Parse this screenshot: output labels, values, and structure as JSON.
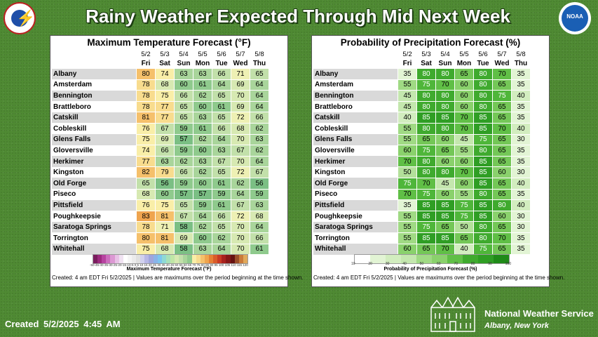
{
  "title": "Rainy Weather Expected Through Mid Next Week",
  "logos": {
    "left": "nws-logo",
    "right": "noaa-logo",
    "right_text": "NOAA"
  },
  "dates": [
    "5/2",
    "5/3",
    "5/4",
    "5/5",
    "5/6",
    "5/7",
    "5/8"
  ],
  "days": [
    "Fri",
    "Sat",
    "Sun",
    "Mon",
    "Tue",
    "Wed",
    "Thu"
  ],
  "locations": [
    "Albany",
    "Amsterdam",
    "Bennington",
    "Brattleboro",
    "Catskill",
    "Cobleskill",
    "Glens Falls",
    "Gloversville",
    "Herkimer",
    "Kingston",
    "Old Forge",
    "Piseco",
    "Pittsfield",
    "Poughkeepsie",
    "Saratoga Springs",
    "Torrington",
    "Whitehall"
  ],
  "temp_panel": {
    "title": "Maximum Temperature Forecast (°F)",
    "values": [
      [
        80,
        74,
        63,
        63,
        66,
        71,
        65
      ],
      [
        78,
        68,
        60,
        61,
        64,
        69,
        64
      ],
      [
        78,
        75,
        66,
        62,
        65,
        70,
        64
      ],
      [
        78,
        77,
        65,
        60,
        61,
        69,
        64
      ],
      [
        81,
        77,
        65,
        63,
        65,
        72,
        66
      ],
      [
        76,
        67,
        59,
        61,
        66,
        68,
        62
      ],
      [
        75,
        69,
        57,
        62,
        64,
        70,
        63
      ],
      [
        74,
        66,
        59,
        60,
        63,
        67,
        62
      ],
      [
        77,
        63,
        62,
        63,
        67,
        70,
        64
      ],
      [
        82,
        79,
        66,
        62,
        65,
        72,
        67
      ],
      [
        65,
        56,
        59,
        60,
        61,
        62,
        56
      ],
      [
        68,
        60,
        57,
        57,
        59,
        64,
        59
      ],
      [
        76,
        75,
        65,
        59,
        61,
        67,
        63
      ],
      [
        83,
        81,
        67,
        64,
        66,
        72,
        68
      ],
      [
        78,
        71,
        58,
        62,
        65,
        70,
        64
      ],
      [
        80,
        81,
        69,
        60,
        62,
        70,
        66
      ],
      [
        75,
        68,
        58,
        63,
        64,
        70,
        61
      ]
    ],
    "legend_label": "Maximum Temperature Forecast (°F)",
    "legend_ticks": "-50-45-40-35-30-25-20-15-10-5 0 5 10 15 20 25 30 35 40 45 50 55 60 65 70 75 80 85 90 95 100 105 110 115 120",
    "footnote": "Created: 4 am EDT Fri 5/2/2025  |  Values are maximums over the period beginning at the time shown."
  },
  "precip_panel": {
    "title": "Probability of Precipitation Forecast (%)",
    "values": [
      [
        35,
        80,
        80,
        65,
        80,
        70,
        35
      ],
      [
        55,
        75,
        70,
        60,
        80,
        65,
        35
      ],
      [
        45,
        80,
        80,
        60,
        80,
        75,
        40
      ],
      [
        45,
        80,
        80,
        60,
        80,
        65,
        35
      ],
      [
        40,
        85,
        85,
        70,
        85,
        65,
        35
      ],
      [
        55,
        80,
        80,
        70,
        85,
        70,
        40
      ],
      [
        55,
        65,
        60,
        45,
        75,
        65,
        30
      ],
      [
        60,
        75,
        65,
        55,
        80,
        65,
        35
      ],
      [
        70,
        80,
        60,
        60,
        85,
        65,
        35
      ],
      [
        50,
        80,
        80,
        70,
        85,
        60,
        30
      ],
      [
        75,
        70,
        45,
        60,
        85,
        65,
        40
      ],
      [
        70,
        75,
        60,
        55,
        80,
        65,
        35
      ],
      [
        35,
        85,
        85,
        75,
        85,
        80,
        40
      ],
      [
        55,
        85,
        85,
        75,
        85,
        60,
        30
      ],
      [
        55,
        75,
        65,
        50,
        80,
        65,
        30
      ],
      [
        55,
        85,
        85,
        65,
        80,
        70,
        35
      ],
      [
        60,
        65,
        70,
        40,
        75,
        65,
        35
      ]
    ],
    "legend_label": "Probability of Precipitation Forecast (%)",
    "legend_ticks": [
      "10",
      "20",
      "30",
      "40",
      "50",
      "60",
      "70",
      "80",
      "90",
      "100"
    ],
    "footnote": "Created: 4 am EDT Fri 5/2/2025  |  Values are maximums over the period beginning at the time shown."
  },
  "footer": {
    "created": "Created  5/2/2025 4:45 AM",
    "office_name": "National Weather Service",
    "office_location": "Albany, New York"
  }
}
